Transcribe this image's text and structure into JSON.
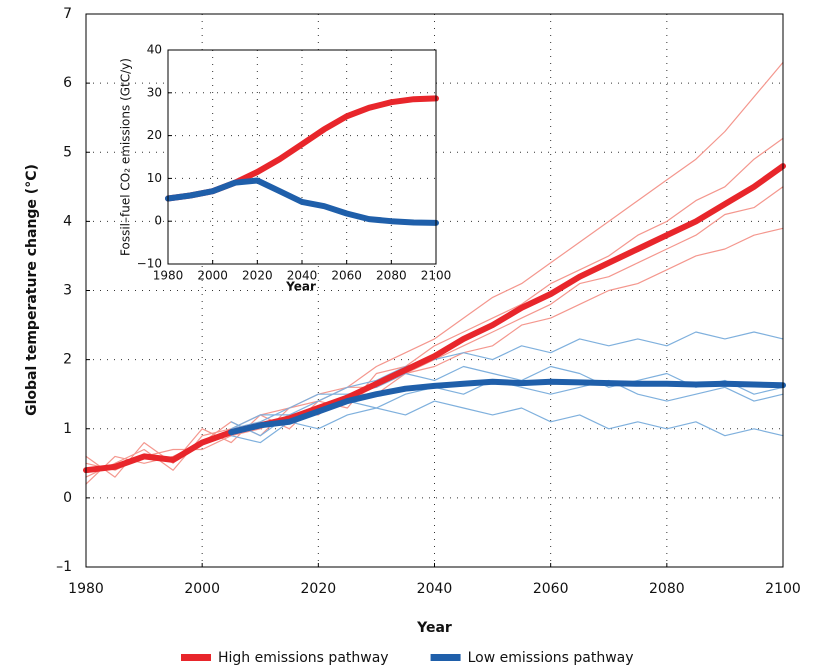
{
  "chart_data": [
    {
      "type": "line",
      "x_label": "Year",
      "y_label": "Global temperature change (°C)",
      "x": [
        1980,
        1985,
        1990,
        1995,
        2000,
        2005,
        2010,
        2015,
        2020,
        2025,
        2030,
        2035,
        2040,
        2045,
        2050,
        2055,
        2060,
        2065,
        2070,
        2075,
        2080,
        2085,
        2090,
        2095,
        2100
      ],
      "xlim": [
        1980,
        2100
      ],
      "xticks": [
        1980,
        2000,
        2020,
        2040,
        2060,
        2080,
        2100
      ],
      "ylim": [
        -1,
        7
      ],
      "yticks": [
        {
          "value": -1,
          "label": "–1"
        },
        0,
        1,
        2,
        3,
        4,
        5,
        6,
        7
      ],
      "grid": true,
      "legend": "bottom",
      "series": [
        {
          "name": "High emissions pathway",
          "color": "#e8262b",
          "values": [
            0.4,
            0.45,
            0.6,
            0.55,
            0.8,
            0.95,
            1.05,
            1.15,
            1.3,
            1.45,
            1.65,
            1.85,
            2.05,
            2.3,
            2.5,
            2.75,
            2.95,
            3.2,
            3.4,
            3.6,
            3.8,
            4.0,
            4.25,
            4.5,
            4.8
          ]
        },
        {
          "name": "Low emissions pathway",
          "color": "#1f5faa",
          "values": [
            null,
            null,
            null,
            null,
            null,
            0.95,
            1.05,
            1.1,
            1.25,
            1.4,
            1.5,
            1.58,
            1.62,
            1.65,
            1.68,
            1.66,
            1.68,
            1.67,
            1.66,
            1.65,
            1.65,
            1.64,
            1.65,
            1.64,
            1.63
          ]
        }
      ],
      "ensemble_high": {
        "color": "#f4978e",
        "members": [
          [
            0.3,
            0.5,
            0.7,
            0.4,
            0.9,
            1.0,
            1.2,
            1.3,
            1.5,
            1.6,
            1.9,
            2.1,
            2.3,
            2.6,
            2.9,
            3.1,
            3.4,
            3.7,
            4.0,
            4.3,
            4.6,
            4.9,
            5.3,
            5.8,
            6.3
          ],
          [
            0.5,
            0.4,
            0.6,
            0.7,
            0.7,
            0.9,
            1.0,
            1.2,
            1.2,
            1.5,
            1.5,
            1.8,
            1.9,
            2.1,
            2.2,
            2.5,
            2.6,
            2.8,
            3.0,
            3.1,
            3.3,
            3.5,
            3.6,
            3.8,
            3.9
          ],
          [
            0.2,
            0.6,
            0.5,
            0.6,
            0.8,
            1.1,
            0.9,
            1.3,
            1.4,
            1.3,
            1.8,
            1.9,
            2.2,
            2.4,
            2.6,
            2.8,
            3.1,
            3.3,
            3.5,
            3.8,
            4.0,
            4.3,
            4.5,
            4.9,
            5.2
          ],
          [
            0.6,
            0.3,
            0.8,
            0.5,
            1.0,
            0.8,
            1.2,
            1.0,
            1.4,
            1.6,
            1.6,
            1.8,
            2.0,
            2.2,
            2.4,
            2.6,
            2.8,
            3.1,
            3.2,
            3.4,
            3.6,
            3.8,
            4.1,
            4.2,
            4.5
          ]
        ]
      },
      "ensemble_low": {
        "color": "#7fb0dd",
        "members": [
          [
            null,
            null,
            null,
            null,
            null,
            1.0,
            1.2,
            1.2,
            1.4,
            1.6,
            1.7,
            1.9,
            2.0,
            2.1,
            2.0,
            2.2,
            2.1,
            2.3,
            2.2,
            2.3,
            2.2,
            2.4,
            2.3,
            2.4,
            2.3
          ],
          [
            null,
            null,
            null,
            null,
            null,
            0.9,
            0.8,
            1.1,
            1.0,
            1.2,
            1.3,
            1.2,
            1.4,
            1.3,
            1.2,
            1.3,
            1.1,
            1.2,
            1.0,
            1.1,
            1.0,
            1.1,
            0.9,
            1.0,
            0.9
          ],
          [
            null,
            null,
            null,
            null,
            null,
            1.0,
            1.1,
            1.3,
            1.5,
            1.5,
            1.6,
            1.8,
            1.7,
            1.9,
            1.8,
            1.7,
            1.9,
            1.8,
            1.6,
            1.7,
            1.8,
            1.6,
            1.7,
            1.5,
            1.6
          ],
          [
            null,
            null,
            null,
            null,
            null,
            1.1,
            0.9,
            1.2,
            1.3,
            1.4,
            1.3,
            1.5,
            1.6,
            1.5,
            1.7,
            1.6,
            1.5,
            1.6,
            1.7,
            1.5,
            1.4,
            1.5,
            1.6,
            1.4,
            1.5
          ]
        ]
      }
    },
    {
      "type": "line",
      "x_label": "Year",
      "y_label": "Fossil–fuel CO₂ emissions (GtC/y)",
      "x": [
        1980,
        1990,
        2000,
        2010,
        2020,
        2030,
        2040,
        2050,
        2060,
        2070,
        2080,
        2090,
        2100
      ],
      "xlim": [
        1980,
        2100
      ],
      "xticks": [
        1980,
        2000,
        2020,
        2040,
        2060,
        2080,
        2100
      ],
      "ylim": [
        -10,
        40
      ],
      "yticks": [
        {
          "value": -10,
          "label": "−10"
        },
        0,
        10,
        20,
        30,
        40
      ],
      "grid": true,
      "series": [
        {
          "color": "#e8262b",
          "values": [
            5.3,
            6,
            7,
            9,
            11.5,
            14.5,
            18,
            21.5,
            24.5,
            26.5,
            27.8,
            28.5,
            28.7
          ]
        },
        {
          "color": "#1f5faa",
          "values": [
            5.3,
            6,
            7,
            9,
            9.5,
            7,
            4.5,
            3.5,
            1.8,
            0.5,
            0,
            -0.3,
            -0.4
          ]
        }
      ]
    }
  ]
}
